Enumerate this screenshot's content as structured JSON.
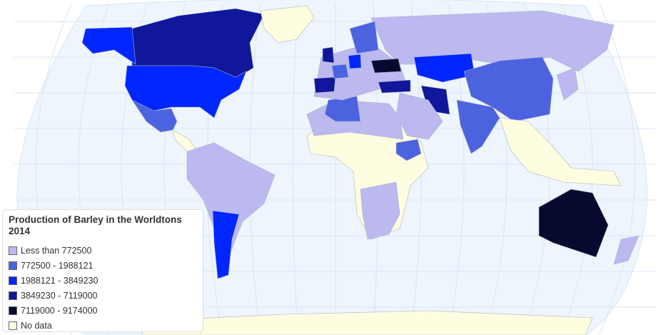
{
  "legend": {
    "title": "Production of Barley in the Worldtons 2014",
    "items": [
      {
        "label": "Less than 772500",
        "color": "#bcb8f0"
      },
      {
        "label": "772500 - 1988121",
        "color": "#4c63e0"
      },
      {
        "label": "1988121 - 3849230",
        "color": "#0026ff"
      },
      {
        "label": "3849230 - 7119000",
        "color": "#10179a"
      },
      {
        "label": "7119000 - 9174000",
        "color": "#060a2e"
      },
      {
        "label": "No data",
        "color": "#fffde0"
      }
    ]
  },
  "colors": {
    "ocean": "#eef5fc",
    "grid": "#d6e6f5",
    "border": "#aab4c8"
  },
  "regions": [
    {
      "name": "canada",
      "class": 3
    },
    {
      "name": "alaska",
      "class": 2
    },
    {
      "name": "usa",
      "class": 2
    },
    {
      "name": "greenland",
      "class": 5
    },
    {
      "name": "mexico",
      "class": 1
    },
    {
      "name": "central-america",
      "class": 5
    },
    {
      "name": "south-america",
      "class": 0
    },
    {
      "name": "argentina",
      "class": 2
    },
    {
      "name": "africa",
      "class": 5
    },
    {
      "name": "north-africa",
      "class": 0
    },
    {
      "name": "algeria",
      "class": 1
    },
    {
      "name": "ethiopia",
      "class": 1
    },
    {
      "name": "southern-africa",
      "class": 0
    },
    {
      "name": "russia",
      "class": 0
    },
    {
      "name": "europe",
      "class": 0
    },
    {
      "name": "scandinavia",
      "class": 1
    },
    {
      "name": "uk",
      "class": 3
    },
    {
      "name": "spain",
      "class": 3
    },
    {
      "name": "france",
      "class": 1
    },
    {
      "name": "germany",
      "class": 2
    },
    {
      "name": "ukraine",
      "class": 4
    },
    {
      "name": "turkey",
      "class": 3
    },
    {
      "name": "iran",
      "class": 3
    },
    {
      "name": "kazakhstan",
      "class": 2
    },
    {
      "name": "middle-east",
      "class": 0
    },
    {
      "name": "china",
      "class": 1
    },
    {
      "name": "india",
      "class": 1
    },
    {
      "name": "southeast-asia",
      "class": 5
    },
    {
      "name": "japan",
      "class": 0
    },
    {
      "name": "australia",
      "class": 4
    },
    {
      "name": "new-zealand",
      "class": 0
    },
    {
      "name": "antarctica",
      "class": 5
    }
  ]
}
